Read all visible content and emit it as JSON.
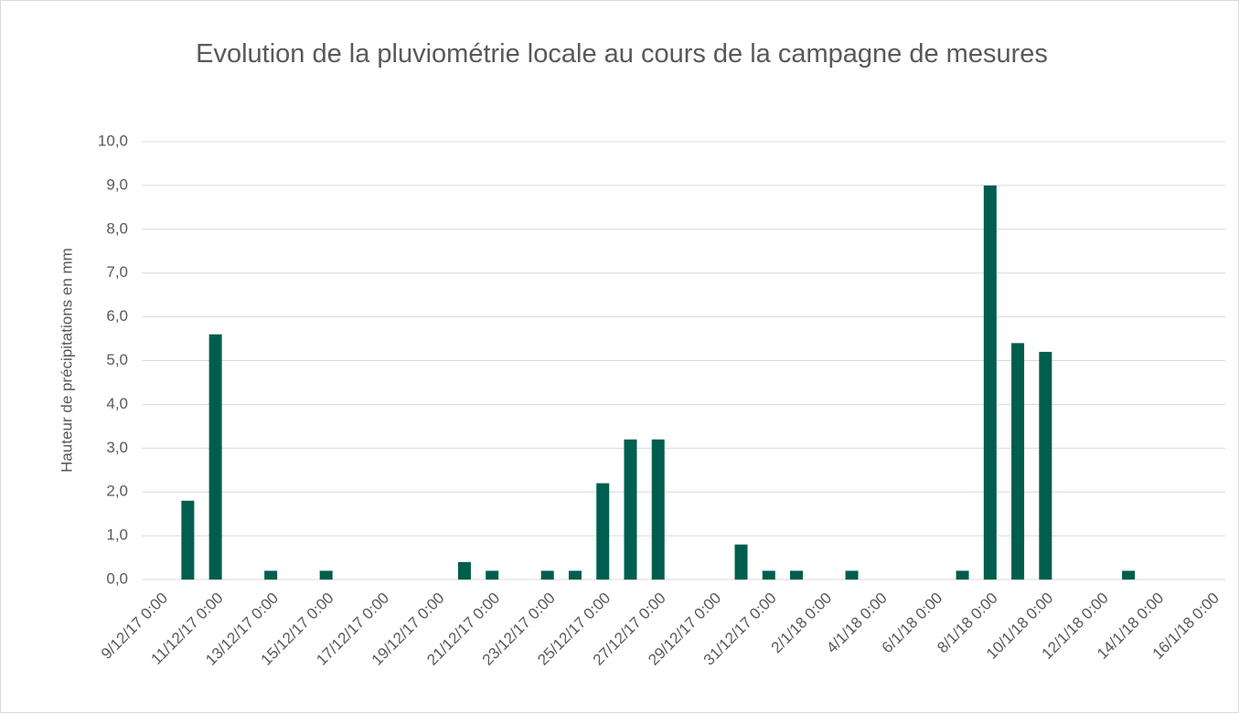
{
  "chart_data": {
    "type": "bar",
    "title": "Evolution de la pluviométrie locale au cours de la campagne de mesures",
    "y_label": "Hauteur de précipitations en mm",
    "categories": [
      "9/12/17 0:00",
      null,
      "11/12/17 0:00",
      null,
      "13/12/17 0:00",
      null,
      "15/12/17 0:00",
      null,
      "17/12/17 0:00",
      null,
      "19/12/17 0:00",
      null,
      "21/12/17 0:00",
      null,
      "23/12/17 0:00",
      null,
      "25/12/17 0:00",
      null,
      "27/12/17 0:00",
      null,
      "29/12/17 0:00",
      null,
      "31/12/17 0:00",
      null,
      "2/1/18 0:00",
      null,
      "4/1/18 0:00",
      null,
      "6/1/18 0:00",
      null,
      "8/1/18 0:00",
      null,
      "10/1/18 0:00",
      null,
      "12/1/18 0:00",
      null,
      "14/1/18 0:00",
      null,
      "16/1/18 0:00"
    ],
    "values": [
      0,
      1.8,
      5.6,
      0,
      0.2,
      0,
      0.2,
      0,
      0,
      0,
      0,
      0.4,
      0.2,
      0,
      0.2,
      0.2,
      2.2,
      3.2,
      3.2,
      0,
      0,
      0.8,
      0.2,
      0.2,
      0,
      0.2,
      0,
      0,
      0,
      0.2,
      9.0,
      5.4,
      5.2,
      0,
      0,
      0.2,
      0,
      0,
      0
    ],
    "color": "#005e4e",
    "ylim": [
      0,
      10
    ],
    "yticks": [
      {
        "value": 0,
        "label": "0,0"
      },
      {
        "value": 1,
        "label": "1,0"
      },
      {
        "value": 2,
        "label": "2,0"
      },
      {
        "value": 3,
        "label": "3,0"
      },
      {
        "value": 4,
        "label": "4,0"
      },
      {
        "value": 5,
        "label": "5,0"
      },
      {
        "value": 6,
        "label": "6,0"
      },
      {
        "value": 7,
        "label": "7,0"
      },
      {
        "value": 8,
        "label": "8,0"
      },
      {
        "value": 9,
        "label": "9,0"
      },
      {
        "value": 10,
        "label": "10,0"
      }
    ],
    "grid": true
  }
}
